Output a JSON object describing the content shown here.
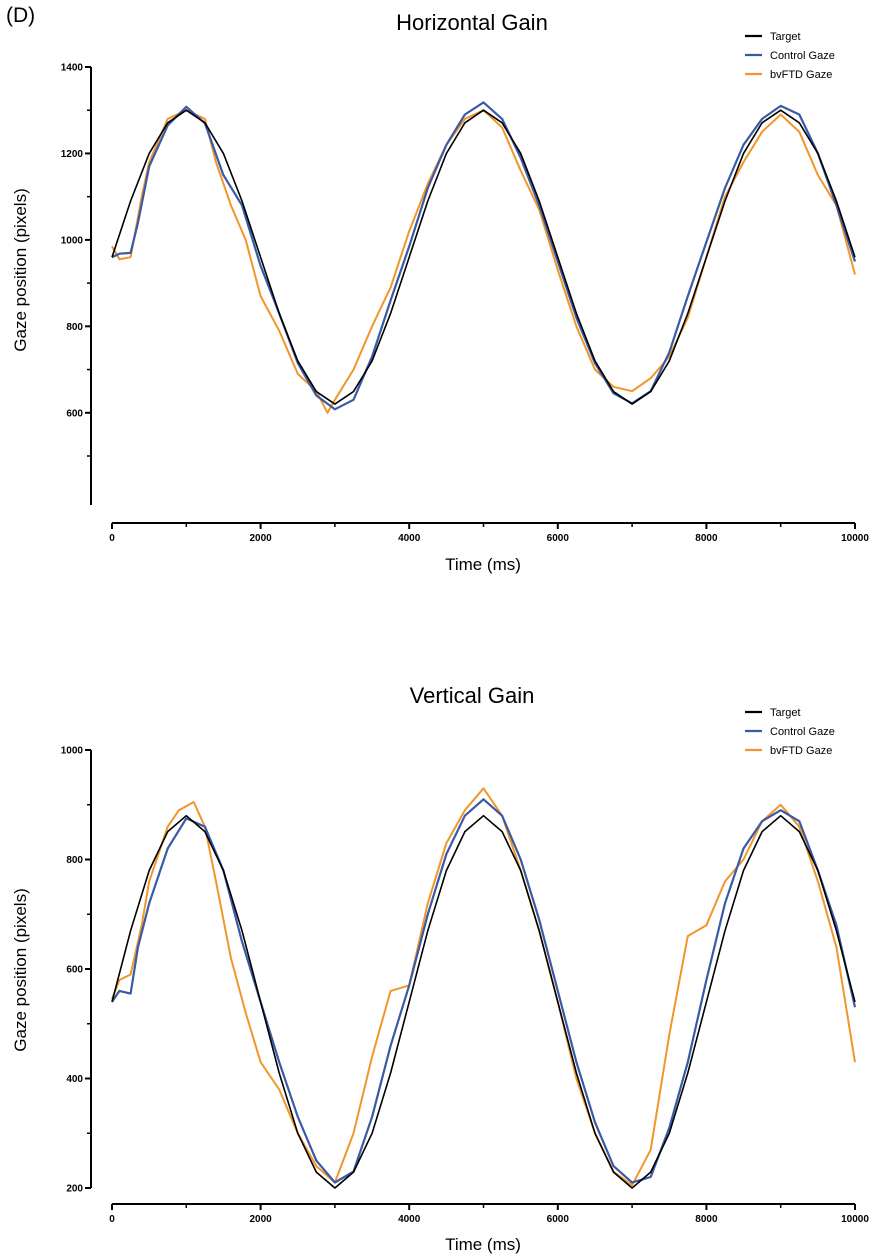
{
  "panel_label": "(D)",
  "colors": {
    "target": "#000000",
    "control": "#3a5aa6",
    "bvftd": "#f0962a"
  },
  "chart_data": [
    {
      "type": "line",
      "title": "Horizontal Gain",
      "xlabel": "Time (ms)",
      "ylabel": "Gaze position (pixels)",
      "xlim": [
        0,
        10000
      ],
      "ylim": [
        500,
        1400
      ],
      "xticks": [
        "0",
        "2000",
        "4000",
        "6000",
        "8000",
        "10000"
      ],
      "yticks": [
        "600",
        "800",
        "1000",
        "1200",
        "1400"
      ],
      "legend_position": "top-right",
      "series": [
        {
          "name": "Target",
          "x": [
            0,
            250,
            500,
            750,
            1000,
            1250,
            1500,
            1750,
            2000,
            2250,
            2500,
            2750,
            3000,
            3250,
            3500,
            3750,
            4000,
            4250,
            4500,
            4750,
            5000,
            5250,
            5500,
            5750,
            6000,
            6250,
            6500,
            6750,
            7000,
            7250,
            7500,
            7750,
            8000,
            8250,
            8500,
            8750,
            9000,
            9250,
            9500,
            9750,
            10000
          ],
          "y": [
            960,
            1090,
            1200,
            1271,
            1300,
            1271,
            1200,
            1090,
            960,
            830,
            720,
            649,
            620,
            649,
            720,
            830,
            960,
            1090,
            1200,
            1271,
            1300,
            1271,
            1200,
            1090,
            960,
            830,
            720,
            649,
            620,
            649,
            720,
            830,
            960,
            1090,
            1200,
            1271,
            1300,
            1271,
            1200,
            1090,
            960
          ]
        },
        {
          "name": "Control Gaze",
          "x": [
            0,
            100,
            250,
            350,
            500,
            750,
            1000,
            1250,
            1500,
            1750,
            2000,
            2250,
            2500,
            2750,
            3000,
            3250,
            3500,
            3750,
            4000,
            4250,
            4500,
            4750,
            5000,
            5250,
            5500,
            5750,
            6000,
            6250,
            6500,
            6750,
            7000,
            7250,
            7500,
            7750,
            8000,
            8250,
            8500,
            8750,
            9000,
            9250,
            9500,
            9750,
            10000
          ],
          "y": [
            960,
            968,
            970,
            1040,
            1170,
            1265,
            1308,
            1270,
            1150,
            1080,
            940,
            830,
            715,
            640,
            608,
            630,
            730,
            860,
            985,
            1120,
            1220,
            1290,
            1318,
            1280,
            1190,
            1080,
            950,
            820,
            715,
            645,
            622,
            650,
            740,
            870,
            995,
            1120,
            1220,
            1280,
            1310,
            1290,
            1200,
            1080,
            950
          ]
        },
        {
          "name": "bvFTD Gaze",
          "x": [
            0,
            100,
            250,
            400,
            500,
            750,
            1000,
            1250,
            1400,
            1600,
            1800,
            2000,
            2250,
            2500,
            2750,
            2900,
            3000,
            3250,
            3500,
            3750,
            4000,
            4250,
            4500,
            4750,
            5000,
            5250,
            5500,
            5750,
            6000,
            6250,
            6500,
            6750,
            7000,
            7250,
            7500,
            7750,
            8000,
            8250,
            8500,
            8750,
            9000,
            9250,
            9500,
            9750,
            10000
          ],
          "y": [
            985,
            955,
            960,
            1100,
            1180,
            1280,
            1300,
            1280,
            1180,
            1080,
            1000,
            870,
            790,
            690,
            650,
            600,
            630,
            700,
            800,
            890,
            1020,
            1130,
            1220,
            1280,
            1300,
            1260,
            1160,
            1070,
            930,
            800,
            700,
            660,
            650,
            680,
            730,
            820,
            960,
            1100,
            1180,
            1250,
            1290,
            1250,
            1150,
            1080,
            920
          ]
        }
      ]
    },
    {
      "type": "line",
      "title": "Vertical Gain",
      "xlabel": "Time (ms)",
      "ylabel": "Gaze position (pixels)",
      "xlim": [
        0,
        10000
      ],
      "ylim": [
        200,
        1000
      ],
      "xticks": [
        "0",
        "2000",
        "4000",
        "6000",
        "8000",
        "10000"
      ],
      "yticks": [
        "200",
        "400",
        "600",
        "800",
        "1000"
      ],
      "legend_position": "top-right",
      "series": [
        {
          "name": "Target",
          "x": [
            0,
            250,
            500,
            750,
            1000,
            1250,
            1500,
            1750,
            2000,
            2250,
            2500,
            2750,
            3000,
            3250,
            3500,
            3750,
            4000,
            4250,
            4500,
            4750,
            5000,
            5250,
            5500,
            5750,
            6000,
            6250,
            6500,
            6750,
            7000,
            7250,
            7500,
            7750,
            8000,
            8250,
            8500,
            8750,
            9000,
            9250,
            9500,
            9750,
            10000
          ],
          "y": [
            540,
            670,
            780,
            851,
            880,
            851,
            780,
            670,
            540,
            410,
            300,
            229,
            200,
            229,
            300,
            410,
            540,
            670,
            780,
            851,
            880,
            851,
            780,
            670,
            540,
            410,
            300,
            229,
            200,
            229,
            300,
            410,
            540,
            670,
            780,
            851,
            880,
            851,
            780,
            670,
            540
          ]
        },
        {
          "name": "Control Gaze",
          "x": [
            0,
            100,
            250,
            350,
            500,
            750,
            1000,
            1250,
            1500,
            1750,
            2000,
            2250,
            2500,
            2750,
            3000,
            3250,
            3500,
            3750,
            4000,
            4250,
            4500,
            4750,
            5000,
            5250,
            5500,
            5750,
            6000,
            6250,
            6500,
            6750,
            7000,
            7250,
            7500,
            7750,
            8000,
            8250,
            8500,
            8750,
            9000,
            9250,
            9500,
            9750,
            10000
          ],
          "y": [
            540,
            560,
            555,
            640,
            720,
            820,
            875,
            860,
            780,
            650,
            540,
            430,
            330,
            250,
            210,
            230,
            330,
            460,
            570,
            700,
            810,
            880,
            910,
            880,
            800,
            690,
            560,
            430,
            320,
            240,
            210,
            220,
            310,
            430,
            580,
            720,
            820,
            870,
            890,
            870,
            780,
            680,
            530
          ]
        },
        {
          "name": "bvFTD Gaze",
          "x": [
            0,
            100,
            250,
            400,
            500,
            750,
            900,
            1100,
            1250,
            1400,
            1600,
            1800,
            2000,
            2250,
            2500,
            2750,
            3000,
            3250,
            3500,
            3750,
            4000,
            4250,
            4500,
            4750,
            5000,
            5250,
            5500,
            5750,
            6000,
            6250,
            6500,
            6750,
            7000,
            7250,
            7500,
            7750,
            8000,
            8250,
            8500,
            8750,
            9000,
            9250,
            9500,
            9750,
            10000
          ],
          "y": [
            545,
            580,
            590,
            680,
            760,
            860,
            890,
            905,
            860,
            760,
            620,
            520,
            430,
            380,
            300,
            240,
            210,
            300,
            440,
            560,
            570,
            720,
            830,
            890,
            930,
            880,
            780,
            670,
            540,
            400,
            300,
            230,
            205,
            270,
            480,
            660,
            680,
            760,
            800,
            870,
            900,
            860,
            760,
            640,
            430
          ]
        }
      ]
    }
  ]
}
